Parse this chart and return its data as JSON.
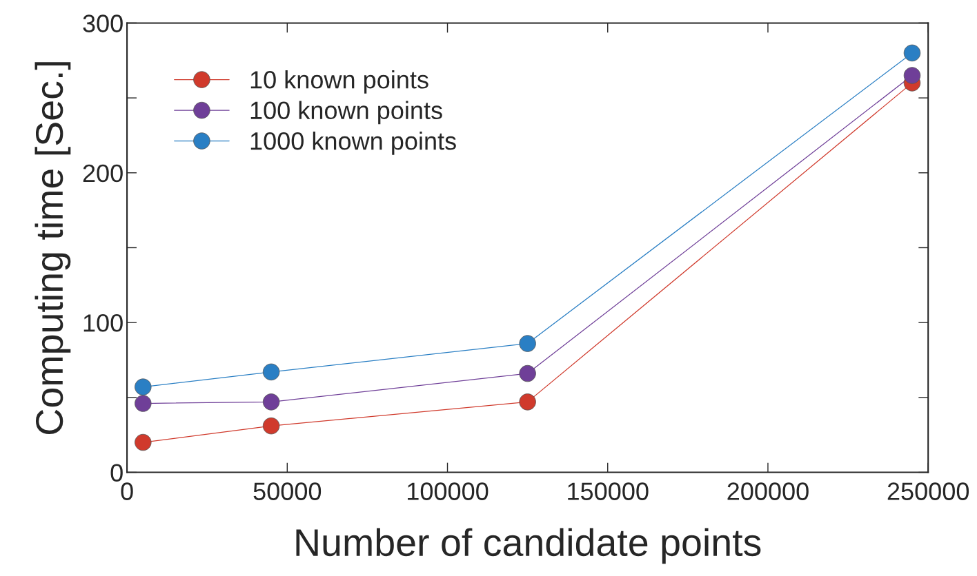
{
  "chart_data": {
    "type": "line",
    "xlabel": "Number of candidate points",
    "ylabel": "Computing time [Sec.]",
    "x": [
      5000,
      45000,
      125000,
      245000
    ],
    "series": [
      {
        "name": "10 known points",
        "color": "#d03a2c",
        "values": [
          20,
          31,
          47,
          260
        ]
      },
      {
        "name": "100 known points",
        "color": "#6f3f98",
        "values": [
          46,
          47,
          66,
          265
        ]
      },
      {
        "name": "1000 known points",
        "color": "#2a7fc4",
        "values": [
          57,
          67,
          86,
          280
        ]
      }
    ],
    "xlim": [
      0,
      250000
    ],
    "xticks": [
      0,
      50000,
      100000,
      150000,
      200000,
      250000
    ],
    "ylim": [
      0,
      300
    ],
    "yticks": [
      0,
      {
        "value": 50,
        "label": null
      },
      100,
      {
        "value": 150,
        "label": null
      },
      200,
      {
        "value": 250,
        "label": null
      },
      300
    ],
    "marker": "circle",
    "legend": "top left",
    "grid": false
  }
}
